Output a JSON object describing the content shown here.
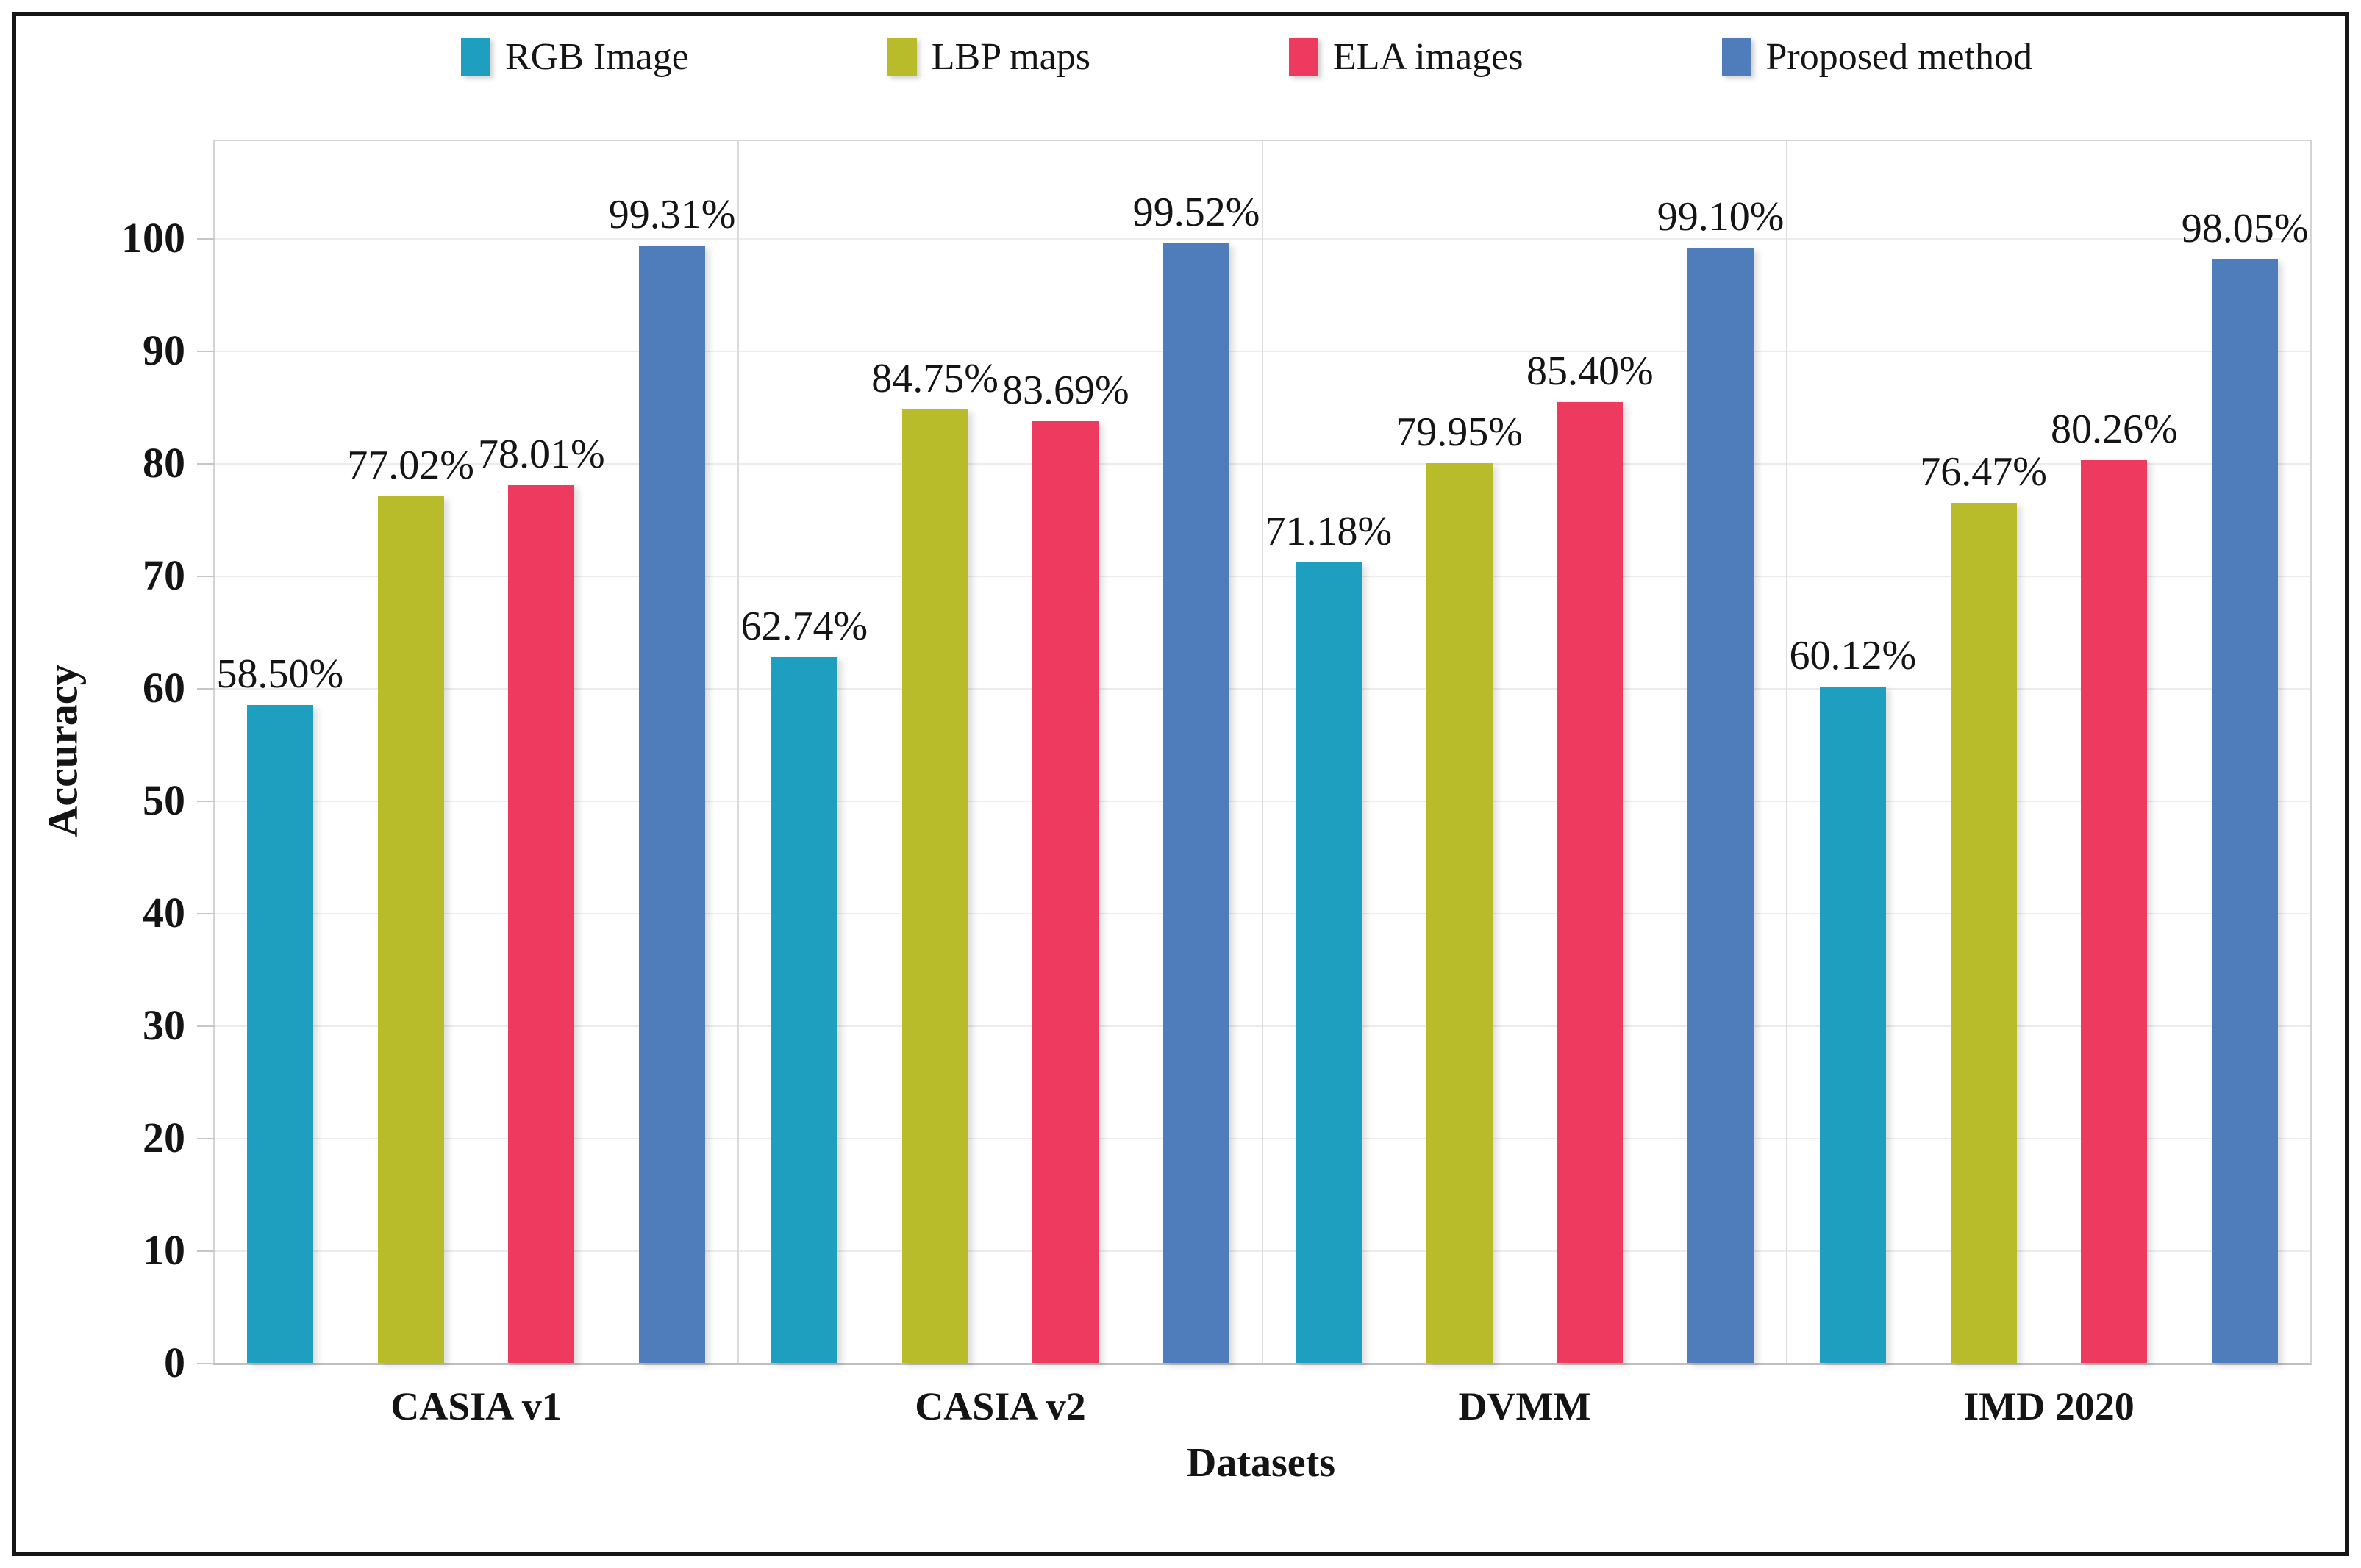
{
  "figure": {
    "background": "#ffffff",
    "border_color": "#161616"
  },
  "legend": {
    "position": "top",
    "items": [
      {
        "label": "RGB Image",
        "color": "#1f9fbf"
      },
      {
        "label": "LBP maps",
        "color": "#b9bc2a"
      },
      {
        "label": "ELA images",
        "color": "#ef3a5f"
      },
      {
        "label": "Proposed method",
        "color": "#4f7cba"
      }
    ]
  },
  "chart_data": {
    "type": "bar",
    "title": "",
    "xlabel": "Datasets",
    "ylabel": "Accuracy",
    "categories": [
      "CASIA v1",
      "CASIA v2",
      "DVMM",
      "IMD 2020"
    ],
    "series": [
      {
        "name": "RGB Image",
        "color": "#1f9fbf",
        "values": [
          58.5,
          62.74,
          71.18,
          60.12
        ],
        "labels": [
          "58.50%",
          "62.74%",
          "71.18%",
          "60.12%"
        ]
      },
      {
        "name": "LBP maps",
        "color": "#b9bc2a",
        "values": [
          77.02,
          84.75,
          79.95,
          76.47
        ],
        "labels": [
          "77.02%",
          "84.75%",
          "79.95%",
          "76.47%"
        ]
      },
      {
        "name": "ELA images",
        "color": "#ef3a5f",
        "values": [
          78.01,
          83.69,
          85.4,
          80.26
        ],
        "labels": [
          "78.01%",
          "83.69%",
          "85.40%",
          "80.26%"
        ]
      },
      {
        "name": "Proposed method",
        "color": "#4f7cba",
        "values": [
          99.31,
          99.52,
          99.1,
          98.05
        ],
        "labels": [
          "99.31%",
          "99.52%",
          "99.10%",
          "98.05%"
        ]
      }
    ],
    "ylim": [
      0,
      108.6
    ],
    "yticks": [
      0,
      10,
      20,
      30,
      40,
      50,
      60,
      70,
      80,
      90,
      100
    ],
    "grid": true,
    "gridline_color": "#ececec",
    "legend_position": "top"
  }
}
